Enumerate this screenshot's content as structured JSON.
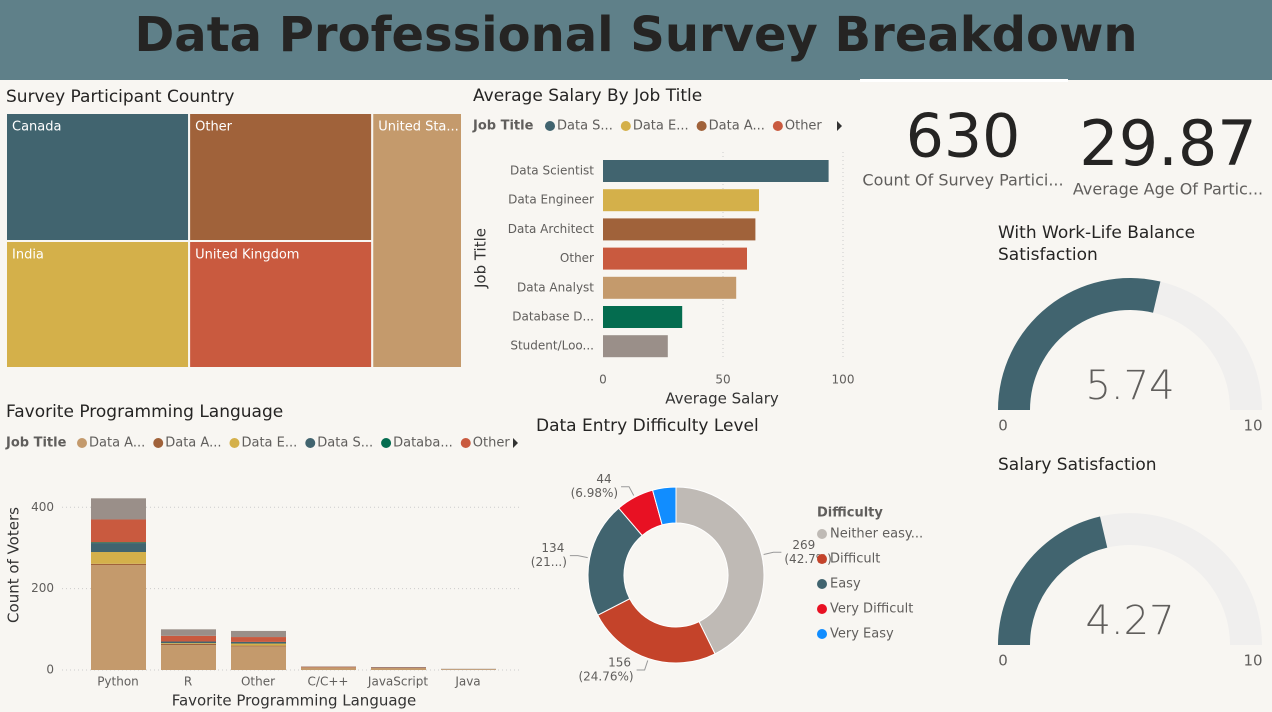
{
  "title": "Data Professional Survey Breakdown",
  "chart_data": [
    {
      "type": "treemap",
      "title": "Survey Participant Country",
      "categories": [
        "Canada",
        "India",
        "Other",
        "United Kingdom",
        "United Sta..."
      ],
      "values": [
        127,
        126,
        127,
        126,
        124
      ],
      "colors": [
        "#41646f",
        "#d4b04a",
        "#a0623a",
        "#c95a3f",
        "#c49a6c"
      ]
    },
    {
      "type": "hbar",
      "title": "Average Salary By Job Title",
      "legend": {
        "title": "Job Title",
        "entries": [
          {
            "name": "Data S...",
            "color": "#41646f"
          },
          {
            "name": "Data E...",
            "color": "#d4b04a"
          },
          {
            "name": "Data A...",
            "color": "#a0623a"
          },
          {
            "name": "Other",
            "color": "#c95a3f"
          }
        ]
      },
      "categories": [
        "Data Scientist",
        "Data Engineer",
        "Data Architect",
        "Other",
        "Data Analyst",
        "Database D...",
        "Student/Loo..."
      ],
      "values": [
        94,
        65,
        63.5,
        60,
        55.5,
        33,
        27
      ],
      "colors": [
        "#41646f",
        "#d4b04a",
        "#a0623a",
        "#c95a3f",
        "#c49a6c",
        "#046c4f",
        "#9a8f89"
      ],
      "xlim": [
        0,
        100
      ],
      "xticks": [
        0,
        50,
        100
      ],
      "grid": true,
      "x_label": "Average Salary",
      "y_label": "Job Title"
    },
    {
      "type": "card",
      "value": 630,
      "label": "Count Of Survey Partici..."
    },
    {
      "type": "card",
      "value": 29.87,
      "label": "Average Age Of Partic..."
    },
    {
      "type": "gauge",
      "title": "With Work-Life Balance Satisfaction",
      "value": 5.74,
      "range": [
        0,
        10
      ],
      "color": "#41646f"
    },
    {
      "type": "gauge",
      "title": "Salary Satisfaction",
      "value": 4.27,
      "range": [
        0,
        10
      ],
      "color": "#41646f"
    },
    {
      "type": "stacked_bar",
      "title": "Favorite Programming Language",
      "legend_title": "Job Title",
      "categories": [
        "Python",
        "R",
        "Other",
        "C/C++",
        "JavaScript",
        "Java"
      ],
      "series": [
        {
          "name": "Data A...",
          "color": "#c49a6c",
          "values": [
            258,
            61,
            58,
            6,
            5,
            2
          ]
        },
        {
          "name": "Data A...",
          "color": "#a0623a",
          "values": [
            3,
            3,
            2,
            1,
            0,
            0
          ]
        },
        {
          "name": "Data E...",
          "color": "#d4b04a",
          "values": [
            29,
            2,
            5,
            0,
            0,
            0
          ]
        },
        {
          "name": "Data S...",
          "color": "#41646f",
          "values": [
            22,
            4,
            4,
            0,
            1,
            0
          ]
        },
        {
          "name": "Databa...",
          "color": "#046c4f",
          "values": [
            2,
            0,
            0,
            0,
            0,
            0
          ]
        },
        {
          "name": "Other",
          "color": "#c95a3f",
          "values": [
            56,
            14,
            12,
            1,
            1,
            0
          ]
        },
        {
          "color": "#9a8f89",
          "values": [
            52,
            16,
            15,
            1,
            0,
            1
          ]
        }
      ],
      "ylim": [
        0,
        440
      ],
      "yticks": [
        0,
        200,
        400
      ],
      "grid": true,
      "x_label": "Favorite Programming Language",
      "y_label": "Count of Voters"
    },
    {
      "type": "donut",
      "title": "Data Entry Difficulty Level",
      "legend_title": "Difficulty",
      "categories": [
        "Neither easy...",
        "Difficult",
        "Easy",
        "Very Difficult",
        "Very Easy"
      ],
      "values": [
        269,
        156,
        134,
        44,
        27
      ],
      "percent_labels": [
        "(42.7%)",
        "(24.76%)",
        "(21...)",
        "(6.98%)",
        null
      ],
      "colors": [
        "#bfbab5",
        "#c4432a",
        "#41646f",
        "#e81123",
        "#118dff"
      ]
    }
  ]
}
